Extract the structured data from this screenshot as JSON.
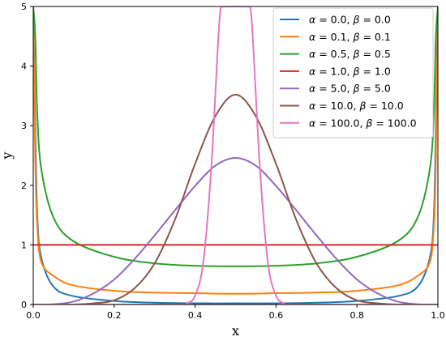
{
  "chart_data": {
    "type": "line",
    "title": "",
    "xlabel": "x",
    "ylabel": "y",
    "xlim": [
      0.0,
      1.0
    ],
    "ylim": [
      0,
      5
    ],
    "xticks": [
      "0.0",
      "0.2",
      "0.4",
      "0.6",
      "0.8",
      "1.0"
    ],
    "yticks": [
      "0",
      "1",
      "2",
      "3",
      "4",
      "5"
    ],
    "grid": false,
    "legend": {
      "position": "top-right"
    },
    "series": [
      {
        "name": "α = 0.0,  β = 0.0",
        "alpha_text": "0.0",
        "beta_text": "0.0",
        "alpha": 0.0,
        "beta": 0.0,
        "color": "#1f77b4",
        "x": [
          0.0,
          0.005,
          0.01,
          0.02,
          0.05,
          0.1,
          0.2,
          0.3,
          0.4,
          0.5,
          0.6,
          0.7,
          0.8,
          0.9,
          0.95,
          0.98,
          0.99,
          0.995,
          1.0
        ],
        "y": [
          5.0,
          2.96,
          1.48,
          0.78,
          0.3,
          0.14,
          0.06,
          0.03,
          0.02,
          0.02,
          0.02,
          0.03,
          0.06,
          0.14,
          0.3,
          0.78,
          1.48,
          2.96,
          5.0
        ]
      },
      {
        "name": "α = 0.1,  β = 0.1",
        "alpha_text": "0.1",
        "beta_text": "0.1",
        "alpha": 0.1,
        "beta": 0.1,
        "color": "#ff7f0e",
        "x": [
          0.0,
          0.005,
          0.01,
          0.02,
          0.05,
          0.1,
          0.2,
          0.3,
          0.4,
          0.5,
          0.6,
          0.7,
          0.8,
          0.9,
          0.95,
          0.98,
          0.99,
          0.995,
          1.0
        ],
        "y": [
          5.0,
          2.42,
          1.31,
          0.71,
          0.48,
          0.32,
          0.23,
          0.2,
          0.19,
          0.18,
          0.19,
          0.2,
          0.23,
          0.32,
          0.48,
          0.71,
          1.31,
          2.42,
          5.0
        ]
      },
      {
        "name": "α = 0.5,  β = 0.5",
        "alpha_text": "0.5",
        "beta_text": "0.5",
        "alpha": 0.5,
        "beta": 0.5,
        "color": "#2ca02c",
        "x": [
          0.0,
          0.005,
          0.01,
          0.02,
          0.05,
          0.1,
          0.2,
          0.3,
          0.4,
          0.5,
          0.6,
          0.7,
          0.8,
          0.9,
          0.95,
          0.98,
          0.99,
          0.995,
          1.0
        ],
        "y": [
          5.0,
          4.5,
          3.2,
          2.27,
          1.46,
          1.06,
          0.8,
          0.69,
          0.65,
          0.64,
          0.65,
          0.69,
          0.8,
          1.06,
          1.46,
          2.27,
          3.2,
          4.5,
          5.0
        ]
      },
      {
        "name": "α = 1.0,  β = 1.0",
        "alpha_text": "1.0",
        "beta_text": "1.0",
        "alpha": 1.0,
        "beta": 1.0,
        "color": "#d62728",
        "x": [
          0.0,
          0.25,
          0.5,
          0.75,
          1.0
        ],
        "y": [
          1.0,
          1.0,
          1.0,
          1.0,
          1.0
        ]
      },
      {
        "name": "α = 5.0,  β = 5.0",
        "alpha_text": "5.0",
        "beta_text": "5.0",
        "alpha": 5.0,
        "beta": 5.0,
        "color": "#9467bd",
        "x": [
          0.0,
          0.05,
          0.1,
          0.15,
          0.2,
          0.25,
          0.3,
          0.35,
          0.4,
          0.45,
          0.5,
          0.55,
          0.6,
          0.65,
          0.7,
          0.75,
          0.8,
          0.85,
          0.9,
          0.95,
          1.0
        ],
        "y": [
          0.0,
          0.004,
          0.05,
          0.19,
          0.42,
          0.76,
          1.16,
          1.58,
          1.99,
          2.33,
          2.46,
          2.33,
          1.99,
          1.58,
          1.16,
          0.76,
          0.42,
          0.19,
          0.05,
          0.004,
          0.0
        ]
      },
      {
        "name": "α = 10.0,  β = 10.0",
        "alpha_text": "10.0",
        "beta_text": "10.0",
        "alpha": 10.0,
        "beta": 10.0,
        "color": "#8c564b",
        "x": [
          0.0,
          0.1,
          0.15,
          0.2,
          0.25,
          0.3,
          0.35,
          0.4,
          0.45,
          0.5,
          0.55,
          0.6,
          0.65,
          0.7,
          0.75,
          0.8,
          0.85,
          0.9,
          1.0
        ],
        "y": [
          0.0,
          0.0,
          0.02,
          0.07,
          0.27,
          0.69,
          1.42,
          2.36,
          3.16,
          3.52,
          3.16,
          2.36,
          1.42,
          0.69,
          0.27,
          0.07,
          0.02,
          0.0,
          0.0
        ]
      },
      {
        "name": "α = 100.0,  β = 100.0",
        "alpha_text": "100.0",
        "beta_text": "100.0",
        "alpha": 100.0,
        "beta": 100.0,
        "color": "#e377c2",
        "x": [
          0.0,
          0.36,
          0.38,
          0.4,
          0.42,
          0.44,
          0.46,
          0.47,
          0.475,
          0.525,
          0.53,
          0.54,
          0.56,
          0.58,
          0.6,
          0.62,
          0.64,
          1.0
        ],
        "y": [
          0.0,
          0.0,
          0.02,
          0.15,
          0.7,
          2.3,
          4.75,
          5.0,
          5.0,
          5.0,
          5.0,
          4.75,
          2.3,
          0.7,
          0.15,
          0.02,
          0.0,
          0.0
        ]
      }
    ]
  }
}
